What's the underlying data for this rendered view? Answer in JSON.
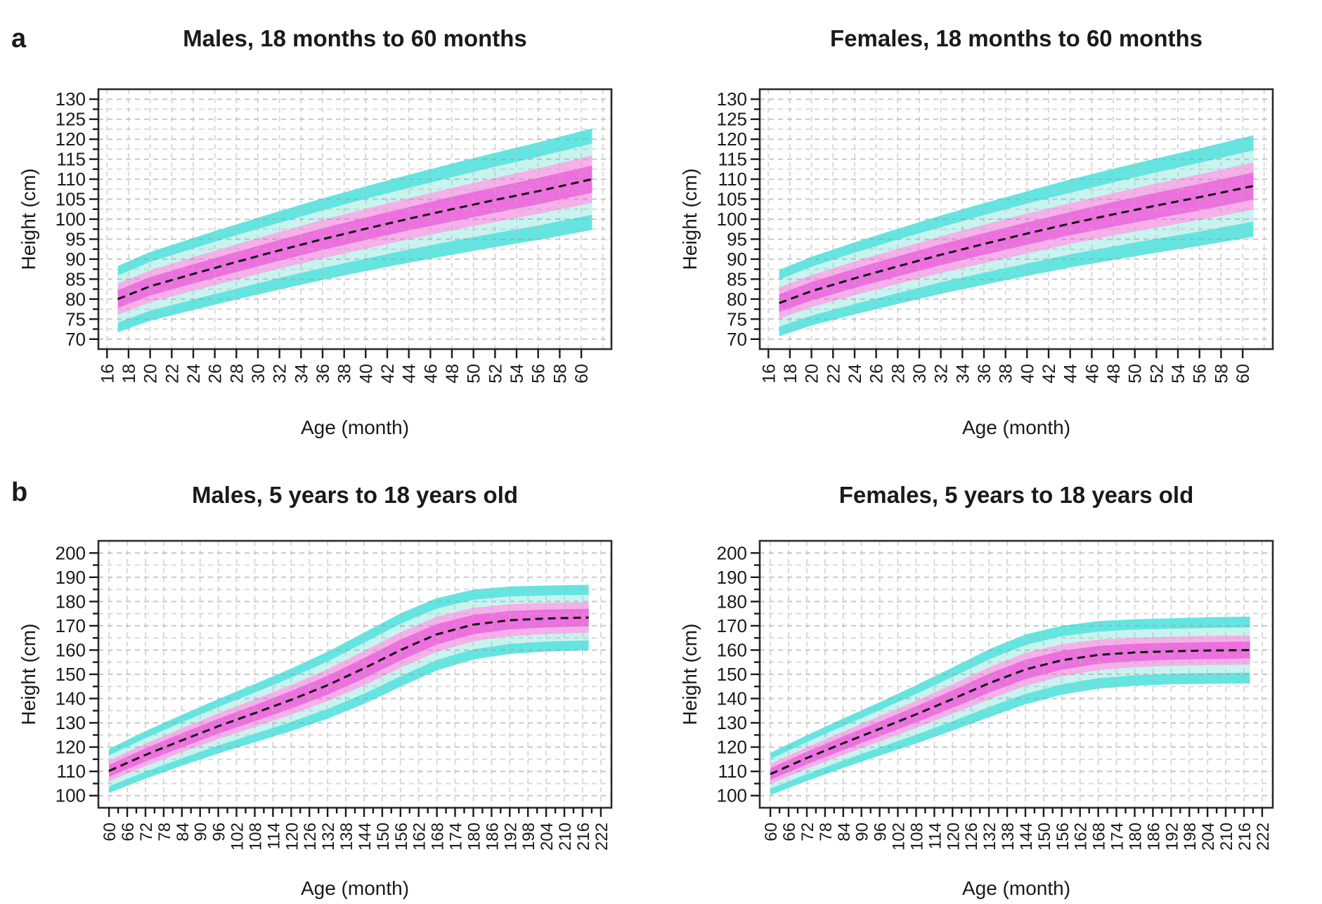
{
  "figure": {
    "background": "#ffffff",
    "panels": [
      {
        "label": "a"
      },
      {
        "label": "b"
      }
    ]
  },
  "colors": {
    "band_outer": "#63E6E2",
    "band_mid_outer": "#C8F3EF",
    "band_mid_inner": "#F6B0EA",
    "band_inner": "#EE6FDF",
    "median": "#141414",
    "grid_major": "#9A9A9A",
    "grid_minor": "#B5B5B5",
    "frame": "#2B2B2B",
    "tick": "#1A1A1A",
    "text": "#1A1A1A"
  },
  "chart_data": [
    {
      "type": "area",
      "panel": "a",
      "title": "Males, 18 months to 60 months",
      "xlabel": "Age (month)",
      "ylabel": "Height (cm)",
      "xlim": [
        15.2,
        62.8
      ],
      "ylim": [
        67.5,
        132.5
      ],
      "x_ticks": [
        16,
        18,
        20,
        22,
        24,
        26,
        28,
        30,
        32,
        34,
        36,
        38,
        40,
        42,
        44,
        46,
        48,
        50,
        52,
        54,
        56,
        58,
        60
      ],
      "y_ticks": [
        70,
        75,
        80,
        85,
        90,
        95,
        100,
        105,
        110,
        115,
        120,
        125,
        130
      ],
      "x_minor_step": null,
      "y_minor_step": 2.5,
      "grid_x": {
        "start": 16,
        "end": 62,
        "step": 2
      },
      "grid_y": {
        "start": 70,
        "end": 130,
        "step": 2.5
      },
      "x": [
        17,
        20,
        24,
        28,
        32,
        36,
        40,
        44,
        48,
        52,
        56,
        61
      ],
      "median": [
        80,
        83.2,
        86.3,
        89.3,
        92.2,
        95,
        97.6,
        100.1,
        102.5,
        104.8,
        107,
        110
      ],
      "bands": [
        {
          "name": "outer",
          "color": "band_outer",
          "half_widths": [
            8.3,
            8.6,
            9,
            9.4,
            9.8,
            10.2,
            10.6,
            11,
            11.4,
            11.8,
            12.2,
            12.7
          ]
        },
        {
          "name": "mid_outer",
          "color": "band_mid_outer",
          "half_widths": [
            5.9,
            6.1,
            6.4,
            6.7,
            6.9,
            7.2,
            7.5,
            7.7,
            8,
            8.3,
            8.6,
            8.9
          ]
        },
        {
          "name": "mid_inner",
          "color": "band_mid_inner",
          "half_widths": [
            3.9,
            4,
            4.2,
            4.4,
            4.6,
            4.8,
            5,
            5.1,
            5.3,
            5.5,
            5.7,
            5.9
          ]
        },
        {
          "name": "inner",
          "color": "band_inner",
          "half_widths": [
            2.2,
            2.3,
            2.4,
            2.5,
            2.6,
            2.7,
            2.8,
            2.9,
            3.1,
            3.2,
            3.3,
            3.4
          ]
        }
      ]
    },
    {
      "type": "area",
      "panel": "a",
      "title": "Females, 18 months to 60 months",
      "xlabel": "Age (month)",
      "ylabel": "Height (cm)",
      "xlim": [
        15.2,
        62.8
      ],
      "ylim": [
        67.5,
        132.5
      ],
      "x_ticks": [
        16,
        18,
        20,
        22,
        24,
        26,
        28,
        30,
        32,
        34,
        36,
        38,
        40,
        42,
        44,
        46,
        48,
        50,
        52,
        54,
        56,
        58,
        60
      ],
      "y_ticks": [
        70,
        75,
        80,
        85,
        90,
        95,
        100,
        105,
        110,
        115,
        120,
        125,
        130
      ],
      "x_minor_step": null,
      "y_minor_step": 2.5,
      "grid_x": {
        "start": 16,
        "end": 62,
        "step": 2
      },
      "grid_y": {
        "start": 70,
        "end": 130,
        "step": 2.5
      },
      "x": [
        17,
        20,
        24,
        28,
        32,
        36,
        40,
        44,
        48,
        52,
        56,
        61
      ],
      "median": [
        79,
        82,
        85.2,
        88.2,
        91.1,
        93.8,
        96.4,
        98.9,
        101.2,
        103.4,
        105.5,
        108.3
      ],
      "bands": [
        {
          "name": "outer",
          "color": "band_outer",
          "half_widths": [
            8.3,
            8.6,
            9,
            9.4,
            9.8,
            10.2,
            10.6,
            11,
            11.4,
            11.8,
            12.2,
            12.7
          ]
        },
        {
          "name": "mid_outer",
          "color": "band_mid_outer",
          "half_widths": [
            5.9,
            6.1,
            6.4,
            6.7,
            6.9,
            7.2,
            7.5,
            7.7,
            8,
            8.3,
            8.6,
            8.9
          ]
        },
        {
          "name": "mid_inner",
          "color": "band_mid_inner",
          "half_widths": [
            3.9,
            4,
            4.2,
            4.4,
            4.6,
            4.8,
            5,
            5.1,
            5.3,
            5.5,
            5.7,
            5.9
          ]
        },
        {
          "name": "inner",
          "color": "band_inner",
          "half_widths": [
            2.2,
            2.3,
            2.4,
            2.5,
            2.6,
            2.7,
            2.8,
            2.9,
            3.1,
            3.2,
            3.3,
            3.4
          ]
        }
      ]
    },
    {
      "type": "area",
      "panel": "b",
      "title": "Males, 5 years to 18 years old",
      "xlabel": "Age (month)",
      "ylabel": "Height (cm)",
      "xlim": [
        56.5,
        225.5
      ],
      "ylim": [
        95,
        205
      ],
      "x_ticks": [
        60,
        66,
        72,
        78,
        84,
        90,
        96,
        102,
        108,
        114,
        120,
        126,
        132,
        138,
        144,
        150,
        156,
        162,
        168,
        174,
        180,
        186,
        192,
        198,
        204,
        210,
        216,
        222
      ],
      "y_ticks": [
        100,
        110,
        120,
        130,
        140,
        150,
        160,
        170,
        180,
        190,
        200
      ],
      "x_minor_step": 3,
      "y_minor_step": 5,
      "grid_x": {
        "start": 60,
        "end": 222,
        "step": 6
      },
      "grid_y": {
        "start": 100,
        "end": 200,
        "step": 5
      },
      "x": [
        60,
        72,
        84,
        96,
        108,
        120,
        132,
        144,
        156,
        168,
        180,
        192,
        204,
        218
      ],
      "median": [
        110.2,
        116.8,
        122.8,
        128.6,
        134,
        139.5,
        145.5,
        152.5,
        160,
        166.5,
        170.5,
        172.3,
        173,
        173.4
      ],
      "bands": [
        {
          "name": "outer",
          "color": "band_outer",
          "half_widths": [
            9.1,
            9.8,
            10.5,
            11.2,
            12,
            12.9,
            13.8,
            14.7,
            15.1,
            14.9,
            14.4,
            13.9,
            13.6,
            13.5
          ]
        },
        {
          "name": "mid_outer",
          "color": "band_mid_outer",
          "half_widths": [
            6.4,
            6.9,
            7.4,
            7.9,
            8.5,
            9.1,
            9.8,
            10.5,
            10.8,
            10.6,
            10.2,
            9.8,
            9.5,
            9.4
          ]
        },
        {
          "name": "mid_inner",
          "color": "band_mid_inner",
          "half_widths": [
            4.3,
            4.6,
            4.9,
            5.3,
            5.7,
            6.1,
            6.6,
            7.1,
            7.3,
            7.2,
            6.9,
            6.6,
            6.4,
            6.3
          ]
        },
        {
          "name": "inner",
          "color": "band_inner",
          "half_widths": [
            2.5,
            2.7,
            2.9,
            3.1,
            3.3,
            3.6,
            3.9,
            4.2,
            4.3,
            4.2,
            4,
            3.8,
            3.7,
            3.6
          ]
        }
      ]
    },
    {
      "type": "area",
      "panel": "b",
      "title": "Females, 5 years to 18 years old",
      "xlabel": "Age (month)",
      "ylabel": "Height (cm)",
      "xlim": [
        56.5,
        225.5
      ],
      "ylim": [
        95,
        205
      ],
      "x_ticks": [
        60,
        66,
        72,
        78,
        84,
        90,
        96,
        102,
        108,
        114,
        120,
        126,
        132,
        138,
        144,
        150,
        156,
        162,
        168,
        174,
        180,
        186,
        192,
        198,
        204,
        210,
        216,
        222
      ],
      "y_ticks": [
        100,
        110,
        120,
        130,
        140,
        150,
        160,
        170,
        180,
        190,
        200
      ],
      "x_minor_step": 3,
      "y_minor_step": 5,
      "grid_x": {
        "start": 60,
        "end": 222,
        "step": 6
      },
      "grid_y": {
        "start": 100,
        "end": 200,
        "step": 5
      },
      "x": [
        60,
        72,
        84,
        96,
        108,
        120,
        132,
        144,
        156,
        168,
        180,
        192,
        204,
        218
      ],
      "median": [
        108.9,
        115.5,
        121.6,
        127.5,
        133.5,
        139.8,
        146.3,
        152,
        155.8,
        158,
        159,
        159.5,
        159.8,
        160
      ],
      "bands": [
        {
          "name": "outer",
          "color": "band_outer",
          "half_widths": [
            8.7,
            9.4,
            10.2,
            11,
            12,
            13,
            14,
            14.4,
            14.2,
            13.9,
            13.7,
            13.6,
            13.7,
            13.8
          ]
        },
        {
          "name": "mid_outer",
          "color": "band_mid_outer",
          "half_widths": [
            6.1,
            6.6,
            7.1,
            7.7,
            8.4,
            9.1,
            9.8,
            10.1,
            9.9,
            9.6,
            9.4,
            9.3,
            9.3,
            9.3
          ]
        },
        {
          "name": "mid_inner",
          "color": "band_mid_inner",
          "half_widths": [
            4.1,
            4.4,
            4.8,
            5.2,
            5.6,
            6.1,
            6.6,
            6.8,
            6.6,
            6.3,
            6.1,
            6,
            6,
            6
          ]
        },
        {
          "name": "inner",
          "color": "band_inner",
          "half_widths": [
            2.4,
            2.6,
            2.8,
            3,
            3.3,
            3.6,
            3.9,
            4,
            3.9,
            3.7,
            3.6,
            3.5,
            3.5,
            3.5
          ]
        }
      ]
    }
  ]
}
